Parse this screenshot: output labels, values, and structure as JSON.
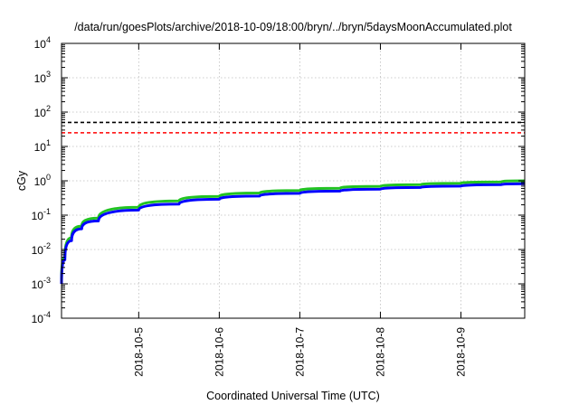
{
  "chart_data": {
    "type": "line",
    "title": "/data/run/goesPlots/archive/2018-10-09/18:00/bryn/../bryn/5daysMoonAccumulated.plot",
    "xlabel": "Coordinated Universal Time (UTC)",
    "ylabel": "cGy",
    "x_scale": "time",
    "xlim": [
      "2018-10-04 01:00",
      "2018-10-09 19:00"
    ],
    "x_ticks": [
      "2018-10-5",
      "2018-10-6",
      "2018-10-7",
      "2018-10-8",
      "2018-10-9"
    ],
    "y_scale": "log",
    "ylim": [
      0.0001,
      10000
    ],
    "y_ticks": [
      {
        "base": "10",
        "exp": "-4",
        "value": 0.0001
      },
      {
        "base": "10",
        "exp": "-3",
        "value": 0.001
      },
      {
        "base": "10",
        "exp": "-2",
        "value": 0.01
      },
      {
        "base": "10",
        "exp": "-1",
        "value": 0.1
      },
      {
        "base": "10",
        "exp": "0",
        "value": 1
      },
      {
        "base": "10",
        "exp": "1",
        "value": 10
      },
      {
        "base": "10",
        "exp": "2",
        "value": 100
      },
      {
        "base": "10",
        "exp": "3",
        "value": 1000
      },
      {
        "base": "10",
        "exp": "4",
        "value": 10000
      }
    ],
    "grid": true,
    "legend": "none",
    "thresholds": [
      {
        "value": 50,
        "color": "#000000",
        "style": "dashed"
      },
      {
        "value": 25,
        "color": "#ff0000",
        "style": "dashed"
      }
    ],
    "series": [
      {
        "color": "#22c322",
        "x": [
          "2018-10-04 01:00",
          "2018-10-04 02:00",
          "2018-10-04 04:00",
          "2018-10-04 07:00",
          "2018-10-04 12:00",
          "2018-10-05 00:00",
          "2018-10-05 12:00",
          "2018-10-06 00:00",
          "2018-10-06 12:00",
          "2018-10-07 00:00",
          "2018-10-07 12:00",
          "2018-10-08 00:00",
          "2018-10-08 12:00",
          "2018-10-09 00:00",
          "2018-10-09 12:00",
          "2018-10-09 19:00"
        ],
        "values": [
          0.0012,
          0.006,
          0.022,
          0.048,
          0.082,
          0.17,
          0.26,
          0.35,
          0.44,
          0.52,
          0.61,
          0.69,
          0.77,
          0.85,
          0.93,
          1.0
        ]
      },
      {
        "color": "#0000ff",
        "x": [
          "2018-10-04 01:00",
          "2018-10-04 02:00",
          "2018-10-04 04:00",
          "2018-10-04 07:00",
          "2018-10-04 12:00",
          "2018-10-05 00:00",
          "2018-10-05 12:00",
          "2018-10-06 00:00",
          "2018-10-06 12:00",
          "2018-10-07 00:00",
          "2018-10-07 12:00",
          "2018-10-08 00:00",
          "2018-10-08 12:00",
          "2018-10-09 00:00",
          "2018-10-09 12:00",
          "2018-10-09 19:00"
        ],
        "values": [
          0.001,
          0.005,
          0.018,
          0.04,
          0.068,
          0.14,
          0.21,
          0.29,
          0.36,
          0.43,
          0.5,
          0.57,
          0.64,
          0.7,
          0.77,
          0.82
        ]
      }
    ]
  }
}
